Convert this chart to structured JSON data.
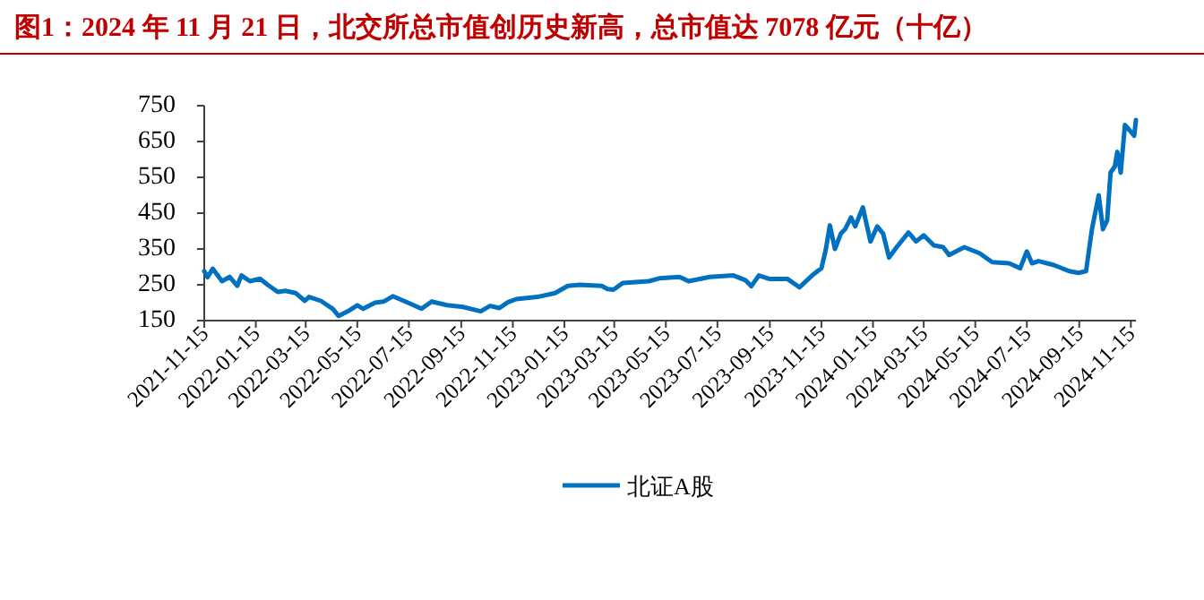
{
  "chart_data": {
    "type": "line",
    "title": "图1：2024 年 11 月 21 日，北交所总市值创历史新高，总市值达 7078 亿元（十亿）",
    "x": [
      "2021-11-15",
      "2021-11-19",
      "2021-11-25",
      "2021-12-06",
      "2021-12-15",
      "2021-12-24",
      "2021-12-29",
      "2022-01-08",
      "2022-01-20",
      "2022-01-29",
      "2022-02-10",
      "2022-02-19",
      "2022-03-03",
      "2022-03-14",
      "2022-03-19",
      "2022-04-02",
      "2022-04-16",
      "2022-04-23",
      "2022-05-04",
      "2022-05-15",
      "2022-05-22",
      "2022-06-05",
      "2022-06-15",
      "2022-06-26",
      "2022-07-14",
      "2022-07-30",
      "2022-08-11",
      "2022-08-29",
      "2022-09-17",
      "2022-10-08",
      "2022-10-19",
      "2022-10-30",
      "2022-11-09",
      "2022-11-19",
      "2022-12-14",
      "2023-01-04",
      "2023-01-19",
      "2023-02-02",
      "2023-02-28",
      "2023-03-07",
      "2023-03-14",
      "2023-03-25",
      "2023-04-25",
      "2023-05-07",
      "2023-05-31",
      "2023-06-11",
      "2023-07-06",
      "2023-08-03",
      "2023-08-17",
      "2023-08-24",
      "2023-09-02",
      "2023-09-15",
      "2023-10-06",
      "2023-10-20",
      "2023-11-04",
      "2023-11-15",
      "2023-11-20",
      "2023-11-25",
      "2023-12-01",
      "2023-12-08",
      "2023-12-13",
      "2023-12-20",
      "2023-12-25",
      "2024-01-03",
      "2024-01-12",
      "2024-01-20",
      "2024-01-27",
      "2024-02-03",
      "2024-02-12",
      "2024-02-26",
      "2024-03-06",
      "2024-03-15",
      "2024-03-27",
      "2024-04-07",
      "2024-04-14",
      "2024-05-02",
      "2024-05-20",
      "2024-06-04",
      "2024-06-24",
      "2024-07-07",
      "2024-07-15",
      "2024-07-21",
      "2024-07-29",
      "2024-08-16",
      "2024-09-03",
      "2024-09-14",
      "2024-09-23",
      "2024-09-30",
      "2024-10-08",
      "2024-10-13",
      "2024-10-18",
      "2024-10-22",
      "2024-10-27",
      "2024-10-30",
      "2024-11-03",
      "2024-11-08",
      "2024-11-14",
      "2024-11-19",
      "2024-11-21"
    ],
    "series": [
      {
        "name": "北证A股",
        "color": "#0070c0",
        "values": [
          288,
          271,
          295,
          260,
          272,
          247,
          276,
          260,
          267,
          250,
          230,
          233,
          227,
          205,
          216,
          205,
          183,
          163,
          176,
          193,
          183,
          200,
          203,
          218,
          200,
          183,
          203,
          193,
          188,
          176,
          191,
          185,
          201,
          210,
          216,
          227,
          247,
          250,
          247,
          238,
          236,
          255,
          260,
          268,
          272,
          260,
          272,
          276,
          263,
          246,
          276,
          266,
          266,
          243,
          276,
          296,
          346,
          416,
          350,
          393,
          405,
          438,
          413,
          466,
          371,
          413,
          393,
          326,
          355,
          396,
          371,
          388,
          360,
          355,
          333,
          355,
          338,
          313,
          310,
          296,
          343,
          310,
          316,
          305,
          288,
          283,
          288,
          405,
          500,
          405,
          430,
          563,
          580,
          621,
          563,
          696,
          680,
          666,
          710
        ]
      }
    ],
    "xlim": [
      "2021-11-15",
      "2024-11-21"
    ],
    "xticks": [
      "2021-11-15",
      "2022-01-15",
      "2022-03-15",
      "2022-05-15",
      "2022-07-15",
      "2022-09-15",
      "2022-11-15",
      "2023-01-15",
      "2023-03-15",
      "2023-05-15",
      "2023-07-15",
      "2023-09-15",
      "2023-11-15",
      "2024-01-15",
      "2024-03-15",
      "2024-05-15",
      "2024-07-15",
      "2024-09-15",
      "2024-11-15"
    ],
    "ylim": [
      150,
      750
    ],
    "yticks": [
      150,
      250,
      350,
      450,
      550,
      650,
      750
    ],
    "grid": false,
    "legend": "bottom",
    "marker": "none",
    "line_style": "solid"
  }
}
